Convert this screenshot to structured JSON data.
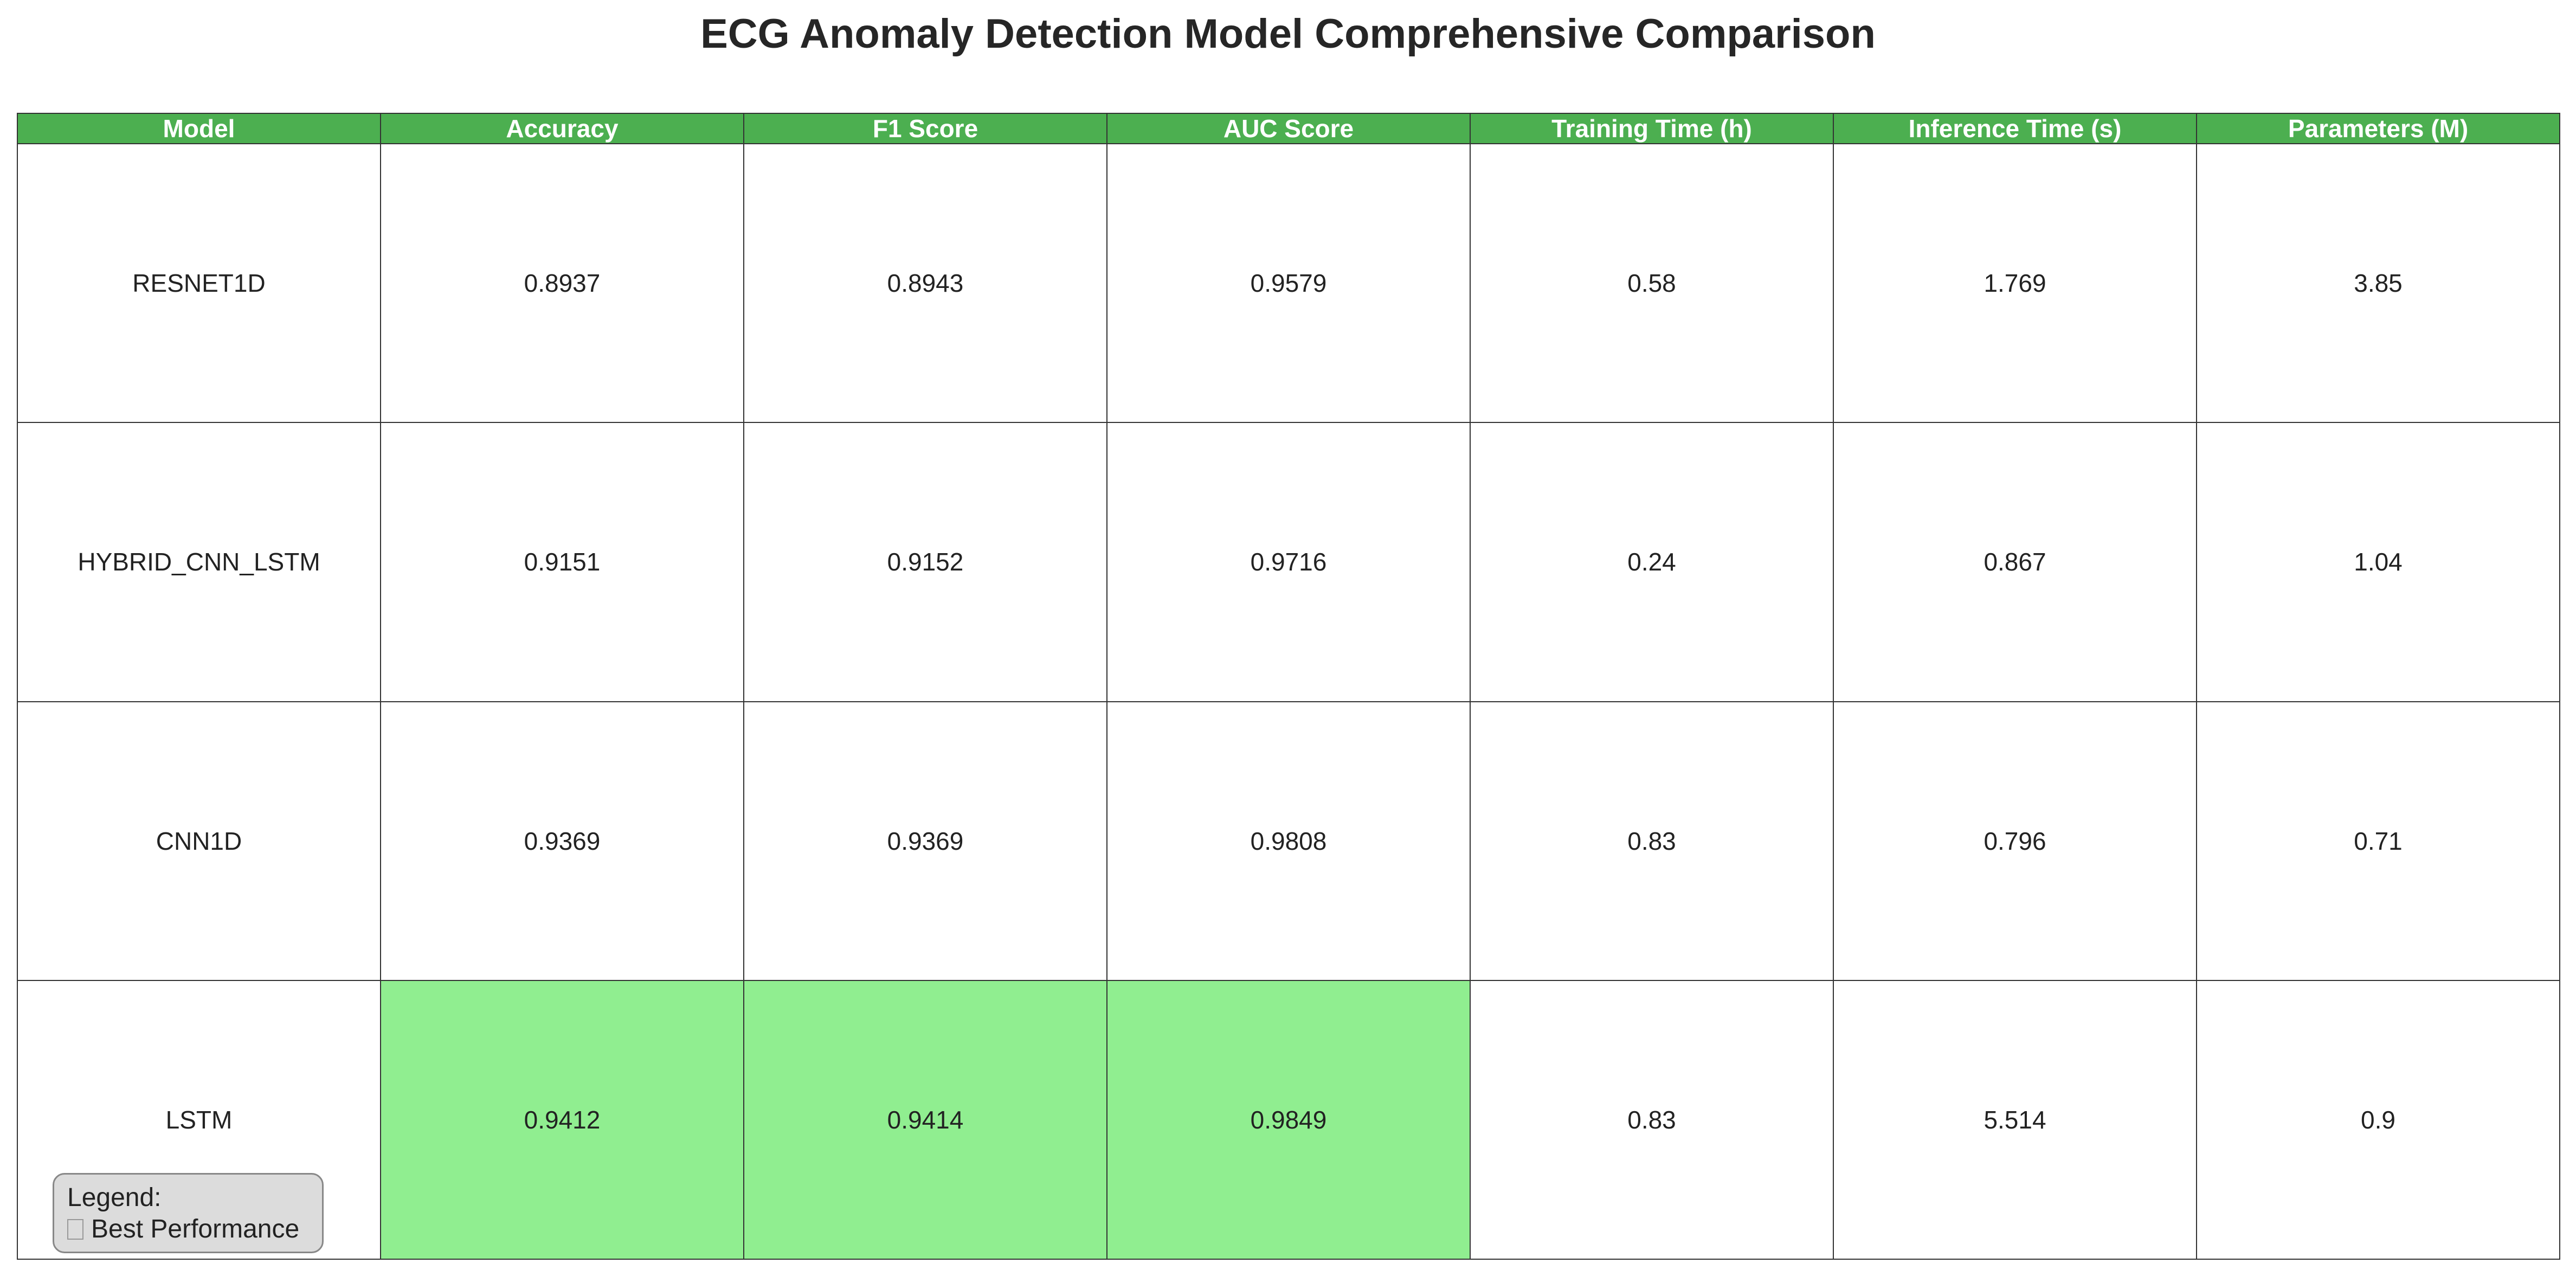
{
  "chart_data": {
    "type": "table",
    "title": "ECG Anomaly Detection Model Comprehensive Comparison",
    "columns": [
      "Model",
      "Accuracy",
      "F1 Score",
      "AUC Score",
      "Training Time (h)",
      "Inference Time (s)",
      "Parameters (M)"
    ],
    "rows": [
      {
        "model": "RESNET1D",
        "accuracy": "0.8937",
        "f1": "0.8943",
        "auc": "0.9579",
        "train_time": "0.58",
        "inference_time": "1.769",
        "params": "3.85",
        "best": []
      },
      {
        "model": "HYBRID_CNN_LSTM",
        "accuracy": "0.9151",
        "f1": "0.9152",
        "auc": "0.9716",
        "train_time": "0.24",
        "inference_time": "0.867",
        "params": "1.04",
        "best": []
      },
      {
        "model": "CNN1D",
        "accuracy": "0.9369",
        "f1": "0.9369",
        "auc": "0.9808",
        "train_time": "0.83",
        "inference_time": "0.796",
        "params": "0.71",
        "best": []
      },
      {
        "model": "LSTM",
        "accuracy": "0.9412",
        "f1": "0.9414",
        "auc": "0.9849",
        "train_time": "0.83",
        "inference_time": "5.514",
        "params": "0.9",
        "best": [
          "accuracy",
          "f1",
          "auc"
        ]
      }
    ],
    "legend": {
      "heading": "Legend:",
      "entry": "Best Performance"
    }
  },
  "colors": {
    "header_bg": "#4caf50",
    "header_text": "#ffffff",
    "best_highlight": "#90ee90",
    "cell_bg": "#ffffff",
    "grid": "#333333",
    "legend_bg": "#dcdcdc"
  }
}
